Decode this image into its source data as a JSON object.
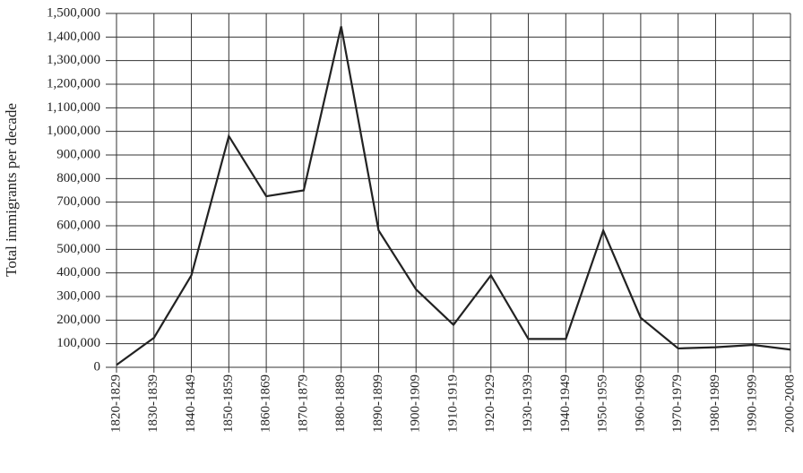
{
  "chart_data": {
    "type": "line",
    "y_label": "Total immigrants per decade",
    "categories": [
      "1820-1829",
      "1830-1839",
      "1840-1849",
      "1850-1859",
      "1860-1869",
      "1870-1879",
      "1880-1889",
      "1890-1899",
      "1900-1909",
      "1910-1919",
      "1920-1929",
      "1930-1939",
      "1940-1949",
      "1950-1959",
      "1960-1969",
      "1970-1979",
      "1980-1989",
      "1990-1999",
      "2000-2008"
    ],
    "values": [
      10000,
      125000,
      390000,
      980000,
      725000,
      750000,
      1445000,
      580000,
      330000,
      180000,
      390000,
      120000,
      120000,
      580000,
      210000,
      80000,
      85000,
      95000,
      75000
    ],
    "color": "#222222",
    "ylim": [
      0,
      1500000
    ],
    "yticks": [
      {
        "value": 0,
        "label": "0"
      },
      {
        "value": 100000,
        "label": "100,000"
      },
      {
        "value": 200000,
        "label": "200,000"
      },
      {
        "value": 300000,
        "label": "300,000"
      },
      {
        "value": 400000,
        "label": "400,000"
      },
      {
        "value": 500000,
        "label": "500,000"
      },
      {
        "value": 600000,
        "label": "600,000"
      },
      {
        "value": 700000,
        "label": "700,000"
      },
      {
        "value": 800000,
        "label": "800,000"
      },
      {
        "value": 900000,
        "label": "900,000"
      },
      {
        "value": 1000000,
        "label": "1,000,000"
      },
      {
        "value": 1100000,
        "label": "1,100,000"
      },
      {
        "value": 1200000,
        "label": "1,200,000"
      },
      {
        "value": 1300000,
        "label": "1,300,000"
      },
      {
        "value": 1400000,
        "label": "1,400,000"
      },
      {
        "value": 1500000,
        "label": "1,500,000"
      }
    ],
    "grid": true
  }
}
